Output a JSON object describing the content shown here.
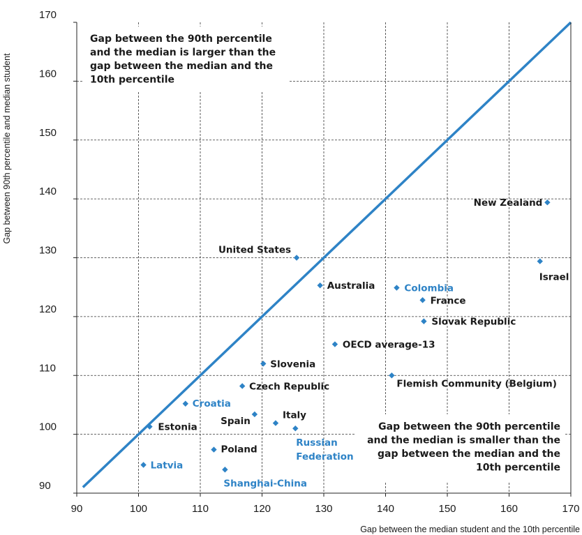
{
  "chart_data": {
    "type": "scatter",
    "xlabel": "Gap between the median student and the 10th percentile",
    "ylabel": "Gap between 90th percentile and median student",
    "xlim": [
      90,
      170
    ],
    "ylim": [
      90,
      170
    ],
    "x_ticks": [
      "90",
      "100",
      "110",
      "120",
      "130",
      "140",
      "150",
      "160",
      "170"
    ],
    "y_ticks": [
      "90",
      "100",
      "110",
      "120",
      "130",
      "140",
      "150",
      "160",
      "170"
    ],
    "grid": true,
    "reference_line": {
      "type": "diagonal",
      "from": [
        91,
        91
      ],
      "to": [
        170,
        170
      ]
    },
    "colors": {
      "line": "#2e83c6",
      "marker": "#2e83c6",
      "highlight_label": "#2e83c6",
      "label": "#1a1a1a",
      "grid": "#333333"
    },
    "points": [
      {
        "label": "New Zealand",
        "x": 166.2,
        "y": 139.4,
        "highlight": false
      },
      {
        "label": "Israel",
        "x": 165.0,
        "y": 129.4,
        "highlight": false
      },
      {
        "label": "United States",
        "x": 125.6,
        "y": 130.0,
        "highlight": false
      },
      {
        "label": "Australia",
        "x": 129.4,
        "y": 125.3,
        "highlight": false
      },
      {
        "label": "Colombia",
        "x": 141.8,
        "y": 124.9,
        "highlight": true
      },
      {
        "label": "France",
        "x": 146.0,
        "y": 122.8,
        "highlight": false
      },
      {
        "label": "Slovak Republic",
        "x": 146.2,
        "y": 119.2,
        "highlight": false
      },
      {
        "label": "OECD average-13",
        "x": 131.8,
        "y": 115.3,
        "highlight": false
      },
      {
        "label": "Slovenia",
        "x": 120.2,
        "y": 112.0,
        "highlight": false
      },
      {
        "label": "Flemish Community (Belgium)",
        "x": 141.0,
        "y": 110.0,
        "highlight": false
      },
      {
        "label": "Czech Republic",
        "x": 116.8,
        "y": 108.2,
        "highlight": false
      },
      {
        "label": "Croatia",
        "x": 107.6,
        "y": 105.2,
        "highlight": true
      },
      {
        "label": "Spain",
        "x": 118.8,
        "y": 103.4,
        "highlight": false
      },
      {
        "label": "Italy",
        "x": 122.2,
        "y": 101.9,
        "highlight": false
      },
      {
        "label": "Russian Federation",
        "x": 125.4,
        "y": 101.0,
        "highlight": true
      },
      {
        "label": "Estonia",
        "x": 101.8,
        "y": 101.3,
        "highlight": false
      },
      {
        "label": "Poland",
        "x": 112.2,
        "y": 97.4,
        "highlight": false
      },
      {
        "label": "Latvia",
        "x": 100.8,
        "y": 94.8,
        "highlight": true
      },
      {
        "label": "Shanghai-China",
        "x": 114.0,
        "y": 94.0,
        "highlight": true
      }
    ],
    "annotations": {
      "upper": {
        "lines": [
          [
            {
              "text": "Gap between the 90th percentile"
            }
          ],
          [
            {
              "text": "and the median is "
            },
            {
              "text": "larger"
            },
            {
              "text": " than the"
            }
          ],
          [
            {
              "text": "gap between the median and the"
            }
          ],
          [
            {
              "text": "10th percentile"
            }
          ]
        ]
      },
      "lower": {
        "lines": [
          [
            {
              "text": "Gap between the 90th percentile"
            }
          ],
          [
            {
              "text": "and the median is "
            },
            {
              "text": "smaller"
            },
            {
              "text": " than the"
            }
          ],
          [
            {
              "text": "gap between the median and the"
            }
          ],
          [
            {
              "text": "10th percentile"
            }
          ]
        ]
      }
    }
  }
}
